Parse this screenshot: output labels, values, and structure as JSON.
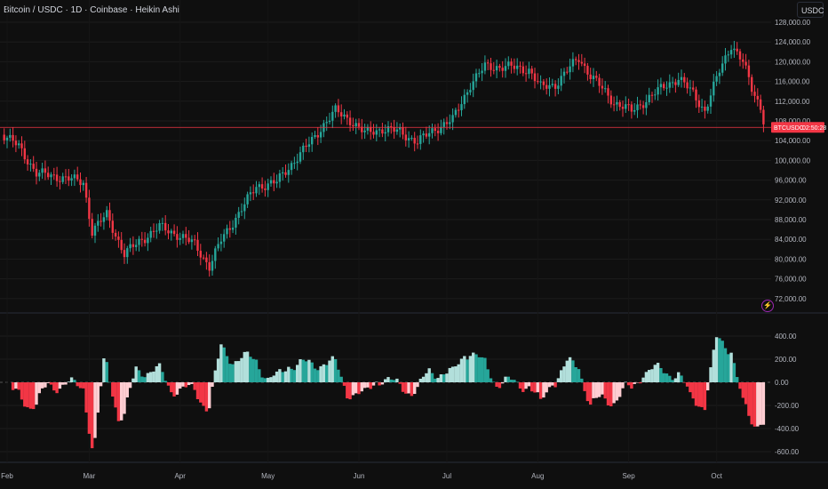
{
  "header": {
    "title": "Bitcoin / USDC · 1D · Coinbase · Heikin Ashi",
    "currency_button": "USDC"
  },
  "price_label": {
    "symbol": "BTCUSDC",
    "countdown": "02:50:28",
    "price": 106700,
    "color": "#f23645"
  },
  "colors": {
    "up": "#26a69a",
    "down": "#f23645",
    "osc_up_dark": "#26a69a",
    "osc_up_light": "#b2dfdb",
    "osc_down_dark": "#f23645",
    "osc_down_light": "#ffcdd2"
  },
  "chart_data": [
    {
      "type": "candlestick",
      "title": "Bitcoin / USDC · 1D · Coinbase · Heikin Ashi",
      "yaxis_ticks": [
        "128,000.00",
        "124,000.00",
        "120,000.00",
        "116,000.00",
        "112,000.00",
        "108,000.00",
        "104,000.00",
        "100,000.00",
        "96,000.00",
        "92,000.00",
        "88,000.00",
        "84,000.00",
        "80,000.00",
        "76,000.00",
        "72,000.00"
      ],
      "ylim": [
        70000,
        130000
      ],
      "xaxis_ticks": [
        "Feb",
        "Mar",
        "Apr",
        "May",
        "Jun",
        "Jul",
        "Aug",
        "Sep",
        "Oct"
      ],
      "xaxis_tick_days": [
        0,
        28,
        59,
        89,
        120,
        150,
        181,
        212,
        242
      ],
      "close_anchors_day_price": [
        [
          -2,
          105500
        ],
        [
          4,
          102800
        ],
        [
          10,
          97400
        ],
        [
          19,
          96500
        ],
        [
          26,
          95600
        ],
        [
          29,
          85600
        ],
        [
          34,
          89000
        ],
        [
          40,
          81000
        ],
        [
          46,
          84000
        ],
        [
          52,
          86500
        ],
        [
          58,
          85000
        ],
        [
          64,
          83000
        ],
        [
          69,
          78500
        ],
        [
          73,
          83800
        ],
        [
          79,
          89300
        ],
        [
          85,
          94700
        ],
        [
          92,
          95600
        ],
        [
          98,
          100000
        ],
        [
          104,
          104000
        ],
        [
          108,
          107300
        ],
        [
          112,
          110000
        ],
        [
          117,
          108200
        ],
        [
          122,
          105500
        ],
        [
          128,
          106400
        ],
        [
          134,
          105800
        ],
        [
          140,
          103700
        ],
        [
          146,
          106400
        ],
        [
          152,
          108200
        ],
        [
          158,
          115400
        ],
        [
          163,
          119000
        ],
        [
          170,
          119000
        ],
        [
          178,
          118400
        ],
        [
          182,
          114800
        ],
        [
          187,
          115400
        ],
        [
          195,
          120800
        ],
        [
          199,
          117200
        ],
        [
          207,
          111800
        ],
        [
          213,
          110000
        ],
        [
          219,
          112700
        ],
        [
          225,
          115400
        ],
        [
          229,
          116600
        ],
        [
          234,
          113600
        ],
        [
          238,
          110000
        ],
        [
          243,
          118100
        ],
        [
          247,
          123500
        ],
        [
          251,
          119900
        ],
        [
          254,
          114500
        ],
        [
          257,
          110900
        ],
        [
          258,
          107300
        ]
      ]
    },
    {
      "type": "area-histogram oscillator",
      "yaxis_ticks": [
        "400.00",
        "200.00",
        "0.00",
        "-200.00",
        "-400.00",
        "-600.00"
      ],
      "ylim": [
        -700,
        500
      ]
    }
  ]
}
